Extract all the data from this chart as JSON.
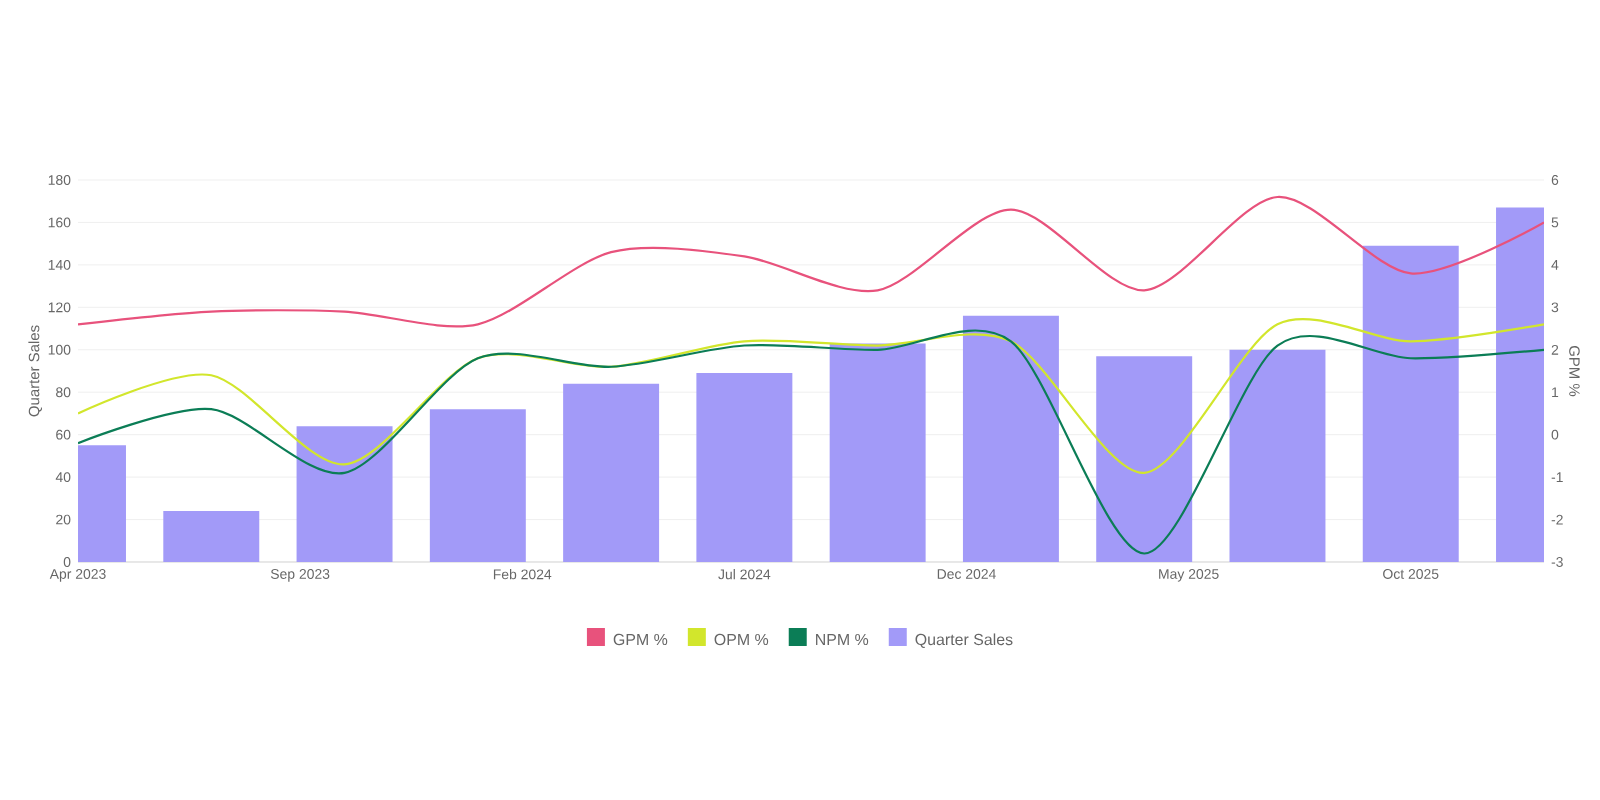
{
  "chart_data": {
    "type": "bar",
    "ylabel": "Quarter Sales",
    "y2label": "GPM %",
    "x": [
      "2023-04",
      "2023-07",
      "2023-10",
      "2024-01",
      "2024-04",
      "2024-07",
      "2024-10",
      "2025-01",
      "2025-04",
      "2025-07",
      "2025-10",
      "2026-01"
    ],
    "xlim": [
      "2023-04",
      "2026-01"
    ],
    "xticks": [
      {
        "value": "2023-04",
        "label": "Apr 2023"
      },
      {
        "value": "2023-09",
        "label": "Sep 2023"
      },
      {
        "value": "2024-02",
        "label": "Feb 2024"
      },
      {
        "value": "2024-07",
        "label": "Jul 2024"
      },
      {
        "value": "2024-12",
        "label": "Dec 2024"
      },
      {
        "value": "2025-05",
        "label": "May 2025"
      },
      {
        "value": "2025-10",
        "label": "Oct 2025"
      }
    ],
    "ylim": [
      0,
      180
    ],
    "yticks": [
      0,
      20,
      40,
      60,
      80,
      100,
      120,
      140,
      160,
      180
    ],
    "y2lim": [
      -3,
      6
    ],
    "y2ticks": [
      -3,
      -2,
      -1,
      0,
      1,
      2,
      3,
      4,
      5,
      6
    ],
    "series": [
      {
        "name": "GPM %",
        "type": "line",
        "axis": "y2",
        "color": "#e8527c",
        "values": [
          2.6,
          2.9,
          2.9,
          2.6,
          4.3,
          4.2,
          3.4,
          5.3,
          3.4,
          5.6,
          3.8,
          5.0
        ]
      },
      {
        "name": "OPM %",
        "type": "line",
        "axis": "y2",
        "color": "#d2e62c",
        "values": [
          0.5,
          1.4,
          -0.7,
          1.8,
          1.6,
          2.2,
          2.1,
          2.2,
          -0.9,
          2.6,
          2.2,
          2.6
        ]
      },
      {
        "name": "NPM %",
        "type": "line",
        "axis": "y2",
        "color": "#0b7d56",
        "values": [
          -0.2,
          0.6,
          -0.9,
          1.8,
          1.6,
          2.1,
          2.0,
          2.2,
          -2.8,
          2.1,
          1.8,
          2.0
        ]
      },
      {
        "name": "Quarter Sales",
        "color": "#a29af8",
        "values": [
          55,
          24,
          64,
          72,
          84,
          89,
          103,
          116,
          97,
          100,
          149,
          167
        ]
      }
    ],
    "grid": "y",
    "legend": "bottom",
    "line_style": "solid"
  }
}
